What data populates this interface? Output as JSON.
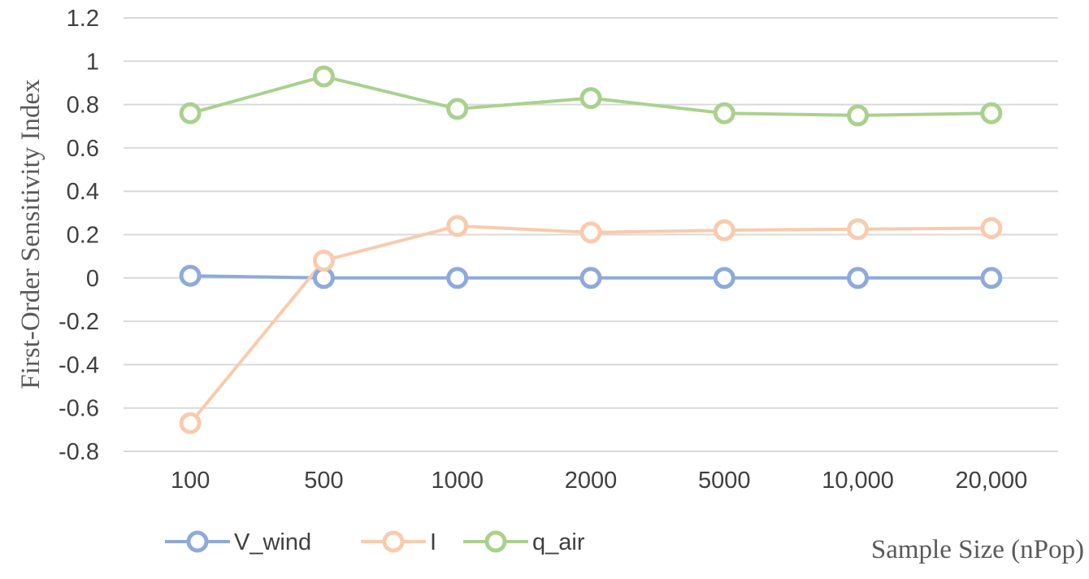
{
  "chart_data": {
    "type": "line",
    "title": "",
    "xlabel": "Sample Size (nPop)",
    "ylabel": "First-Order Sensitivity Index",
    "categories": [
      "100",
      "500",
      "1000",
      "2000",
      "5000",
      "10,000",
      "20,000"
    ],
    "ylim": [
      -0.8,
      1.2
    ],
    "yticks": [
      "1.2",
      "1",
      "0.8",
      "0.6",
      "0.4",
      "0.2",
      "0",
      "-0.2",
      "-0.4",
      "-0.6",
      "-0.8"
    ],
    "grid": true,
    "legend_position": "bottom-left",
    "series": [
      {
        "name": "V_wind",
        "color": "#8eaadb",
        "values": [
          0.01,
          0.0,
          0.0,
          0.0,
          0.0,
          0.0,
          0.0
        ]
      },
      {
        "name": "I",
        "color": "#f8cbad",
        "values": [
          -0.67,
          0.08,
          0.24,
          0.21,
          0.22,
          0.225,
          0.23
        ]
      },
      {
        "name": "q_air",
        "color": "#a9d18e",
        "values": [
          0.76,
          0.93,
          0.78,
          0.83,
          0.76,
          0.75,
          0.76
        ]
      }
    ]
  }
}
